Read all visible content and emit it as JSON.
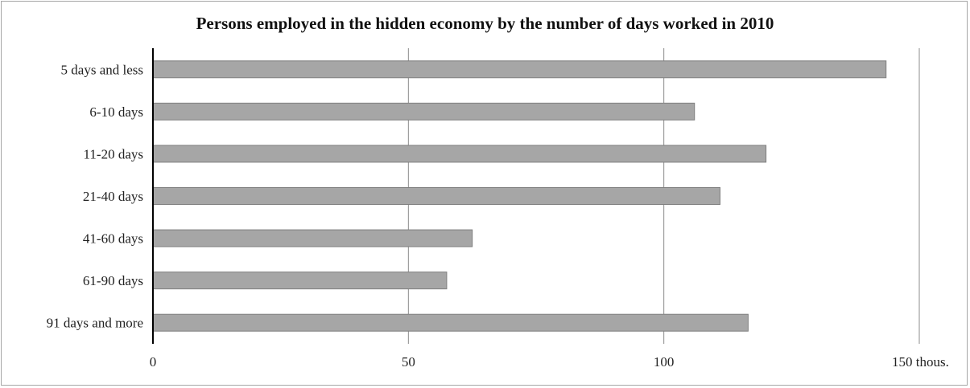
{
  "chart_data": {
    "type": "bar",
    "orientation": "horizontal",
    "title": "Persons employed in the hidden economy by the number of days worked in 2010",
    "categories": [
      "5 days and less",
      "6-10 days",
      "11-20 days",
      "21-40 days",
      "41-60 days",
      "61-90 days",
      "91 days and more"
    ],
    "values": [
      143.5,
      106,
      120,
      111,
      62.5,
      57.5,
      116.5
    ],
    "x_ticks": [
      "0",
      "50",
      "100",
      "150 thous."
    ],
    "xlim": [
      0,
      150
    ],
    "grid": true,
    "legend": "none",
    "colors": {
      "bar": "#a6a6a6",
      "bar_border": "#7f7f7f",
      "grid": "#8c8c8c",
      "axis": "#000000"
    }
  }
}
